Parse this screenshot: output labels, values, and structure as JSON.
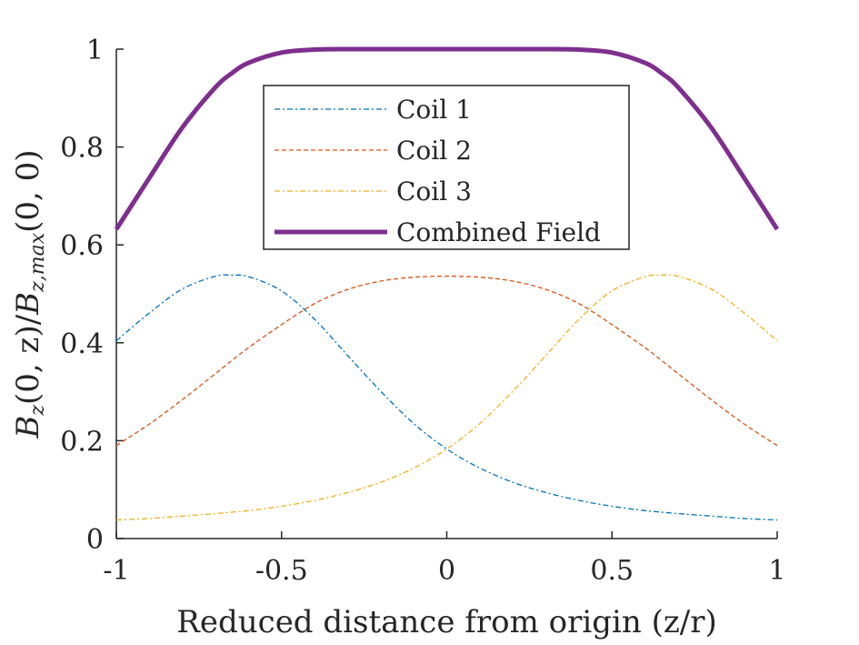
{
  "chart_data": {
    "type": "line",
    "xlabel": "Reduced distance from origin (z/r)",
    "ylabel_parts": {
      "b1": "B",
      "s1": "z",
      "m1": "(0, z)/",
      "b2": "B",
      "s2": "z,max",
      "m2": "(0, 0)"
    },
    "xlim": [
      -1,
      1
    ],
    "ylim": [
      0,
      1
    ],
    "xticks": [
      -1,
      -0.5,
      0,
      0.5,
      1
    ],
    "xtick_labels": [
      "-1",
      "-0.5",
      "0",
      "0.5",
      "1"
    ],
    "yticks": [
      0,
      0.2,
      0.4,
      0.6,
      0.8,
      1
    ],
    "ytick_labels": [
      "0",
      "0.2",
      "0.4",
      "0.6",
      "0.8",
      "1"
    ],
    "grid": false,
    "legend_position": "top-center",
    "x": [
      -1.0,
      -0.9,
      -0.8,
      -0.7,
      -0.65,
      -0.6,
      -0.5,
      -0.4,
      -0.3,
      -0.2,
      -0.1,
      0.0,
      0.1,
      0.2,
      0.3,
      0.4,
      0.5,
      0.6,
      0.65,
      0.7,
      0.8,
      0.9,
      1.0
    ],
    "series": [
      {
        "name": "Coil 1",
        "color": "#0072BD",
        "dash": "6 3 2 3",
        "width": 1.3,
        "values": [
          0.404,
          0.461,
          0.51,
          0.536,
          0.538,
          0.535,
          0.506,
          0.448,
          0.374,
          0.301,
          0.235,
          0.183,
          0.144,
          0.115,
          0.094,
          0.078,
          0.066,
          0.057,
          0.054,
          0.051,
          0.046,
          0.041,
          0.038
        ]
      },
      {
        "name": "Coil 2",
        "color": "#D95319",
        "dash": "5 3",
        "width": 1.3,
        "values": [
          0.19,
          0.234,
          0.284,
          0.337,
          0.364,
          0.39,
          0.437,
          0.48,
          0.509,
          0.526,
          0.534,
          0.536,
          0.534,
          0.526,
          0.509,
          0.48,
          0.437,
          0.39,
          0.364,
          0.337,
          0.284,
          0.234,
          0.19
        ]
      },
      {
        "name": "Coil 3",
        "color": "#EDB120",
        "dash": "6 3 2 3",
        "width": 1.3,
        "values": [
          0.038,
          0.041,
          0.046,
          0.051,
          0.054,
          0.057,
          0.066,
          0.078,
          0.094,
          0.115,
          0.144,
          0.183,
          0.235,
          0.301,
          0.374,
          0.448,
          0.506,
          0.535,
          0.538,
          0.536,
          0.51,
          0.461,
          0.404
        ]
      },
      {
        "name": "Combined Field",
        "color": "#7E2F8E",
        "dash": "",
        "width": 5,
        "values": [
          0.632,
          0.737,
          0.84,
          0.922,
          0.951,
          0.972,
          0.993,
          0.999,
          1.0,
          1.0,
          1.0,
          1.0,
          1.0,
          1.0,
          1.0,
          0.999,
          0.993,
          0.972,
          0.951,
          0.922,
          0.84,
          0.737,
          0.632
        ]
      }
    ]
  }
}
